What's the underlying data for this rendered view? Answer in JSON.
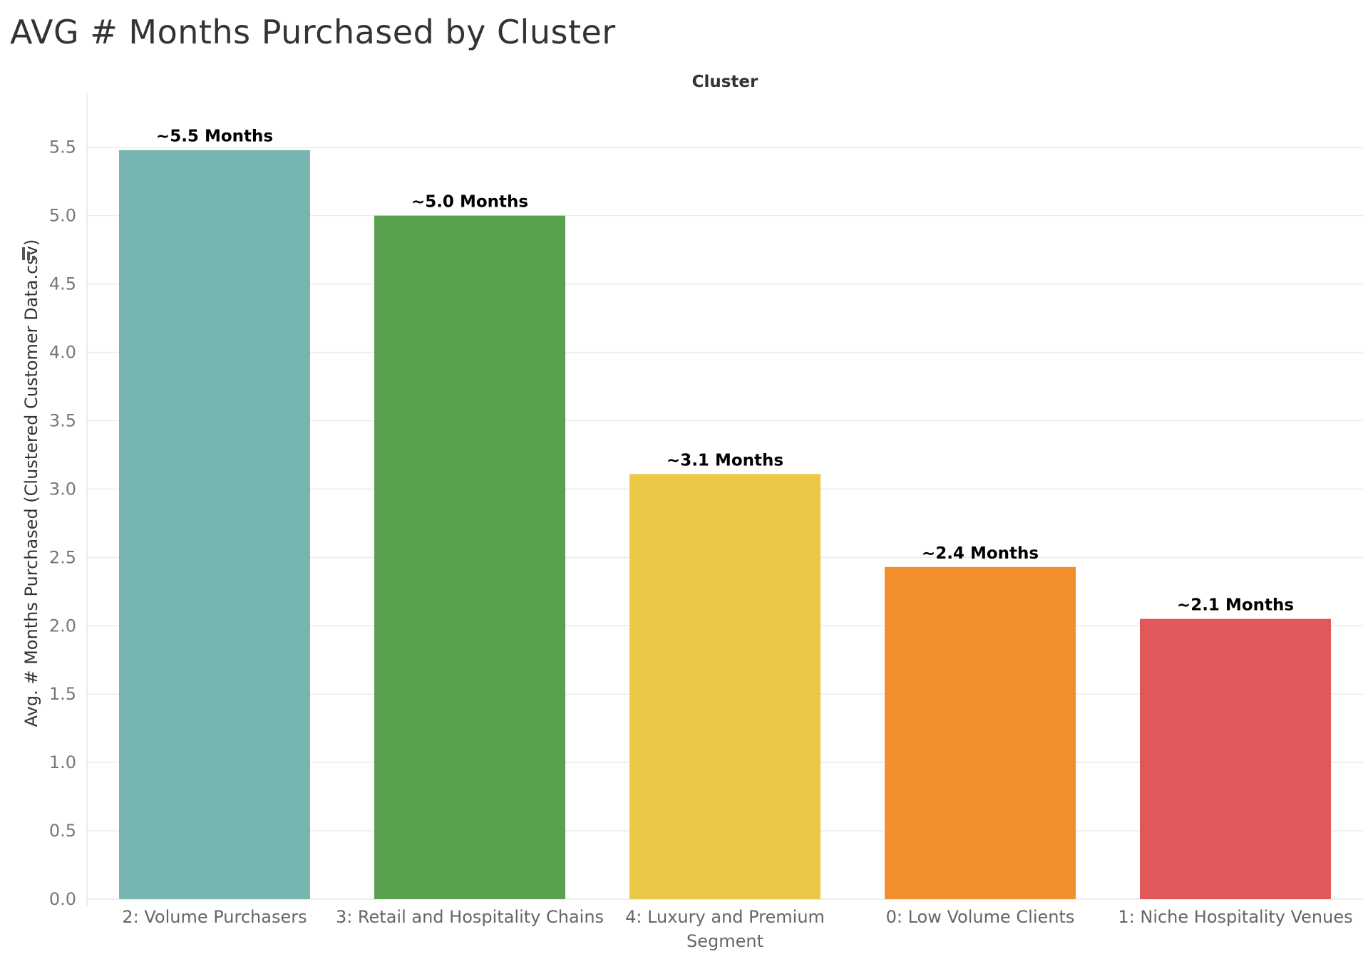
{
  "chart_data": {
    "type": "bar",
    "title": "AVG # Months Purchased by Cluster",
    "column_header": "Cluster",
    "ylabel": "Avg. # Months Purchased (Clustered Customer Data.csv)",
    "ylim": [
      0,
      5.9
    ],
    "yticks": [
      "0.0",
      "0.5",
      "1.0",
      "1.5",
      "2.0",
      "2.5",
      "3.0",
      "3.5",
      "4.0",
      "4.5",
      "5.0",
      "5.5"
    ],
    "grid": true,
    "categories": [
      [
        "2: Volume Purchasers"
      ],
      [
        "3: Retail and Hospitality Chains"
      ],
      [
        "4: Luxury and Premium",
        "Segment"
      ],
      [
        "0: Low Volume Clients"
      ],
      [
        "1: Niche Hospitality Venues"
      ]
    ],
    "values": [
      5.48,
      5.0,
      3.11,
      2.43,
      2.05
    ],
    "data_labels": [
      "~5.5 Months",
      "~5.0 Months",
      "~3.1 Months",
      "~2.4 Months",
      "~2.1 Months"
    ],
    "colors": [
      "#76b5b0",
      "#59a14f",
      "#ebc947",
      "#f28e2b",
      "#e1575a"
    ],
    "gridline_color": "#ebebeb",
    "axis_icon": "bar-chart-sort-icon"
  }
}
